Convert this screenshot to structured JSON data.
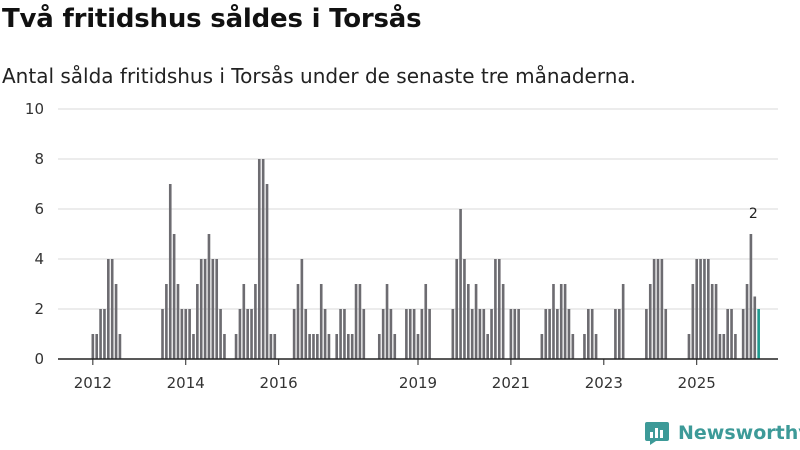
{
  "title": "Två fritidshus såldes i Torsås",
  "subtitle": "Antal sålda fritidshus i Torsås under de senaste tre månaderna.",
  "brand": "Newsworthy",
  "colors": {
    "bar": "#6d6c71",
    "highlight": "#1f9a8f",
    "grid": "#d9d9d9",
    "axis": "#222222",
    "brand": "#3d9a98"
  },
  "chart_data": {
    "type": "bar",
    "title": "Två fritidshus såldes i Torsås",
    "ylabel": "",
    "xlabel": "",
    "ylim": [
      0,
      10
    ],
    "yticks": [
      0,
      2,
      4,
      6,
      8,
      10
    ],
    "xlim": [
      2011.25,
      2026.75
    ],
    "xticks": [
      {
        "label": "2012",
        "x": 2012
      },
      {
        "label": "2014",
        "x": 2014
      },
      {
        "label": "2016",
        "x": 2016
      },
      {
        "label": "2019",
        "x": 2019
      },
      {
        "label": "2021",
        "x": 2021
      },
      {
        "label": "2023",
        "x": 2023
      },
      {
        "label": "2025",
        "x": 2025
      }
    ],
    "start": 2011.25,
    "step": 0.0833333,
    "values": [
      0,
      0,
      0,
      0,
      0,
      0,
      0,
      0,
      0,
      1,
      1,
      2,
      2,
      4,
      4,
      3,
      1,
      0,
      0,
      0,
      0,
      0,
      0,
      0,
      0,
      0,
      0,
      2,
      3,
      7,
      5,
      3,
      2,
      2,
      2,
      1,
      3,
      4,
      4,
      5,
      4,
      4,
      2,
      1,
      0,
      0,
      1,
      2,
      3,
      2,
      2,
      3,
      8,
      8,
      7,
      1,
      1,
      0,
      0,
      0,
      0,
      2,
      3,
      4,
      2,
      1,
      1,
      1,
      3,
      2,
      1,
      0,
      1,
      2,
      2,
      1,
      1,
      3,
      3,
      2,
      0,
      0,
      0,
      1,
      2,
      3,
      2,
      1,
      0,
      0,
      2,
      2,
      2,
      1,
      2,
      3,
      2,
      0,
      0,
      0,
      0,
      0,
      2,
      4,
      6,
      4,
      3,
      2,
      3,
      2,
      2,
      1,
      2,
      4,
      4,
      3,
      0,
      2,
      2,
      2,
      0,
      0,
      0,
      0,
      0,
      1,
      2,
      2,
      3,
      2,
      3,
      3,
      2,
      1,
      0,
      0,
      1,
      2,
      2,
      1,
      0,
      0,
      0,
      0,
      2,
      2,
      3,
      0,
      0,
      0,
      0,
      0,
      2,
      3,
      4,
      4,
      4,
      2,
      0,
      0,
      0,
      0,
      0,
      1,
      3,
      4,
      4,
      4,
      4,
      3,
      3,
      1,
      1,
      2,
      2,
      1,
      0,
      2,
      3,
      5,
      2.5,
      2
    ],
    "annotation": {
      "label": "2",
      "index": 179
    }
  }
}
